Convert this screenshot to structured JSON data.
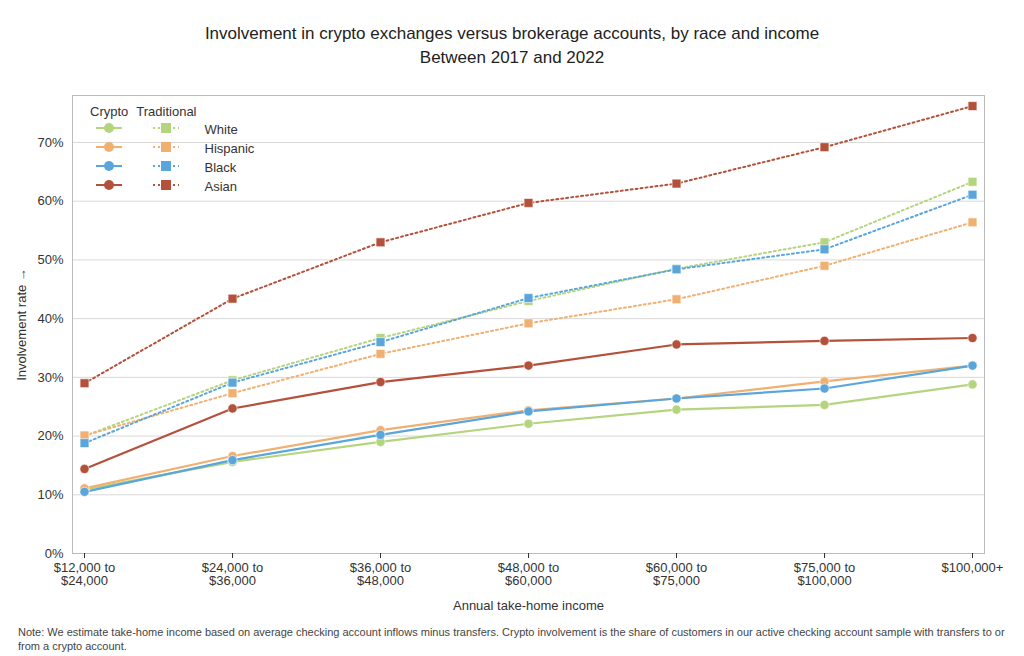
{
  "chart_data": {
    "type": "line",
    "title": "Involvement in crypto exchanges versus brokerage accounts, by race and income",
    "subtitle": "Between 2017 and 2022",
    "x_label": "Annual take-home income",
    "y_label": "Involvement rate",
    "note": "Note: We estimate take-home income based on average checking account inflows minus transfers. Crypto involvement is the share of customers in our active checking account sample with transfers to or from a crypto account.",
    "categories": [
      "$12,000 to $24,000",
      "$24,000 to $36,000",
      "$36,000 to $48,000",
      "$48,000 to $60,000",
      "$60,000 to $75,000",
      "$75,000 to $100,000",
      "$100,000+"
    ],
    "ylim": [
      0,
      78
    ],
    "yticks": [
      {
        "value": 0,
        "label": "0%"
      },
      {
        "value": 10,
        "label": "10%"
      },
      {
        "value": 20,
        "label": "20%"
      },
      {
        "value": 30,
        "label": "30%"
      },
      {
        "value": 40,
        "label": "40%"
      },
      {
        "value": 50,
        "label": "50%"
      },
      {
        "value": 60,
        "label": "60%"
      },
      {
        "value": 70,
        "label": "70%"
      }
    ],
    "grid": true,
    "legend": "top-left",
    "series": [
      {
        "name": "White",
        "group": "Crypto",
        "color": "#b5d47e",
        "marker": "circle",
        "line_style": "solid",
        "values": [
          10.9,
          15.6,
          19,
          22.1,
          24.5,
          25.3,
          28.8
        ]
      },
      {
        "name": "Hispanic",
        "group": "Crypto",
        "color": "#f0b072",
        "marker": "circle",
        "line_style": "solid",
        "values": [
          11.1,
          16.6,
          21,
          24.4,
          26.4,
          29.3,
          32
        ]
      },
      {
        "name": "Black",
        "group": "Crypto",
        "color": "#5aa6dc",
        "marker": "circle",
        "line_style": "solid",
        "values": [
          10.5,
          15.9,
          20.2,
          24.2,
          26.4,
          28.1,
          32
        ]
      },
      {
        "name": "Asian",
        "group": "Crypto",
        "color": "#b4513b",
        "marker": "circle",
        "line_style": "solid",
        "values": [
          14.4,
          24.7,
          29.2,
          32,
          35.6,
          36.2,
          36.7
        ]
      },
      {
        "name": "White",
        "group": "Traditional",
        "color": "#b5d47e",
        "marker": "square",
        "line_style": "dotted",
        "values": [
          20,
          29.5,
          36.7,
          43,
          48.5,
          53,
          63.3
        ]
      },
      {
        "name": "Hispanic",
        "group": "Traditional",
        "color": "#f0b072",
        "marker": "square",
        "line_style": "dotted",
        "values": [
          20.1,
          27.3,
          34,
          39.2,
          43.3,
          49,
          56.4
        ]
      },
      {
        "name": "Black",
        "group": "Traditional",
        "color": "#5aa6dc",
        "marker": "square",
        "line_style": "dotted",
        "values": [
          18.8,
          29.1,
          36,
          43.5,
          48.4,
          51.8,
          61.1
        ]
      },
      {
        "name": "Asian",
        "group": "Traditional",
        "color": "#b4513b",
        "marker": "square",
        "line_style": "dotted",
        "values": [
          29,
          43.4,
          53,
          59.7,
          63,
          69.2,
          76.2
        ]
      }
    ]
  }
}
